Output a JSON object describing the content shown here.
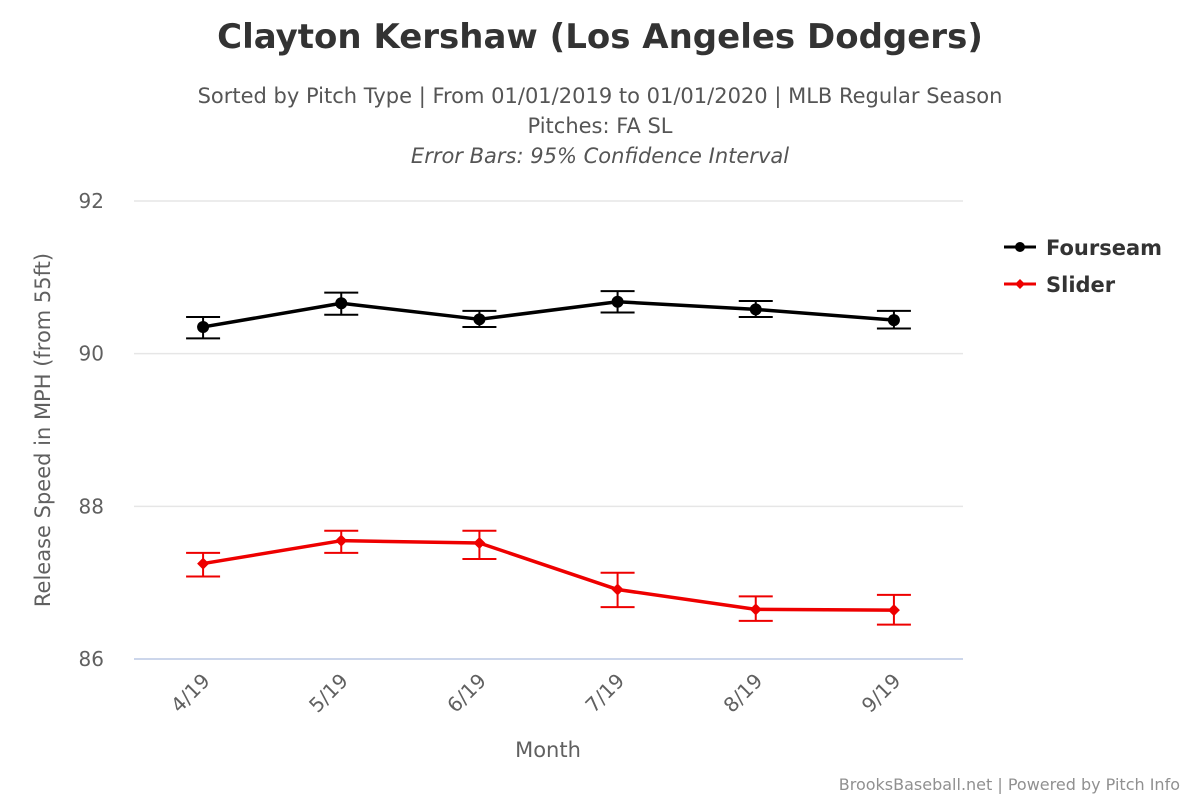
{
  "chart_data": {
    "type": "line",
    "title": "Clayton Kershaw (Los Angeles Dodgers)",
    "subtitle_lines": [
      "Sorted by Pitch Type | From 01/01/2019 to 01/01/2020 | MLB Regular Season",
      "Pitches: FA SL",
      "Error Bars: 95% Confidence Interval"
    ],
    "xlabel": "Month",
    "ylabel": "Release Speed in MPH (from 55ft)",
    "categories": [
      "4/19",
      "5/19",
      "6/19",
      "7/19",
      "8/19",
      "9/19"
    ],
    "ylim": [
      86,
      92
    ],
    "yticks": [
      86,
      88,
      90,
      92
    ],
    "grid": true,
    "legend_position": "right",
    "series": [
      {
        "name": "Fourseam",
        "color": "#000000",
        "marker": "circle",
        "values": [
          90.35,
          90.66,
          90.45,
          90.68,
          90.58,
          90.44
        ],
        "ci_low": [
          90.2,
          90.51,
          90.35,
          90.54,
          90.48,
          90.33
        ],
        "ci_high": [
          90.48,
          90.8,
          90.56,
          90.82,
          90.69,
          90.56
        ]
      },
      {
        "name": "Slider",
        "color": "#ee0000",
        "marker": "diamond",
        "values": [
          87.25,
          87.55,
          87.52,
          86.91,
          86.65,
          86.64
        ],
        "ci_low": [
          87.08,
          87.39,
          87.31,
          86.68,
          86.5,
          86.45
        ],
        "ci_high": [
          87.39,
          87.68,
          87.68,
          87.13,
          86.82,
          86.84
        ]
      }
    ],
    "credits": "BrooksBaseball.net | Powered by Pitch Info"
  }
}
